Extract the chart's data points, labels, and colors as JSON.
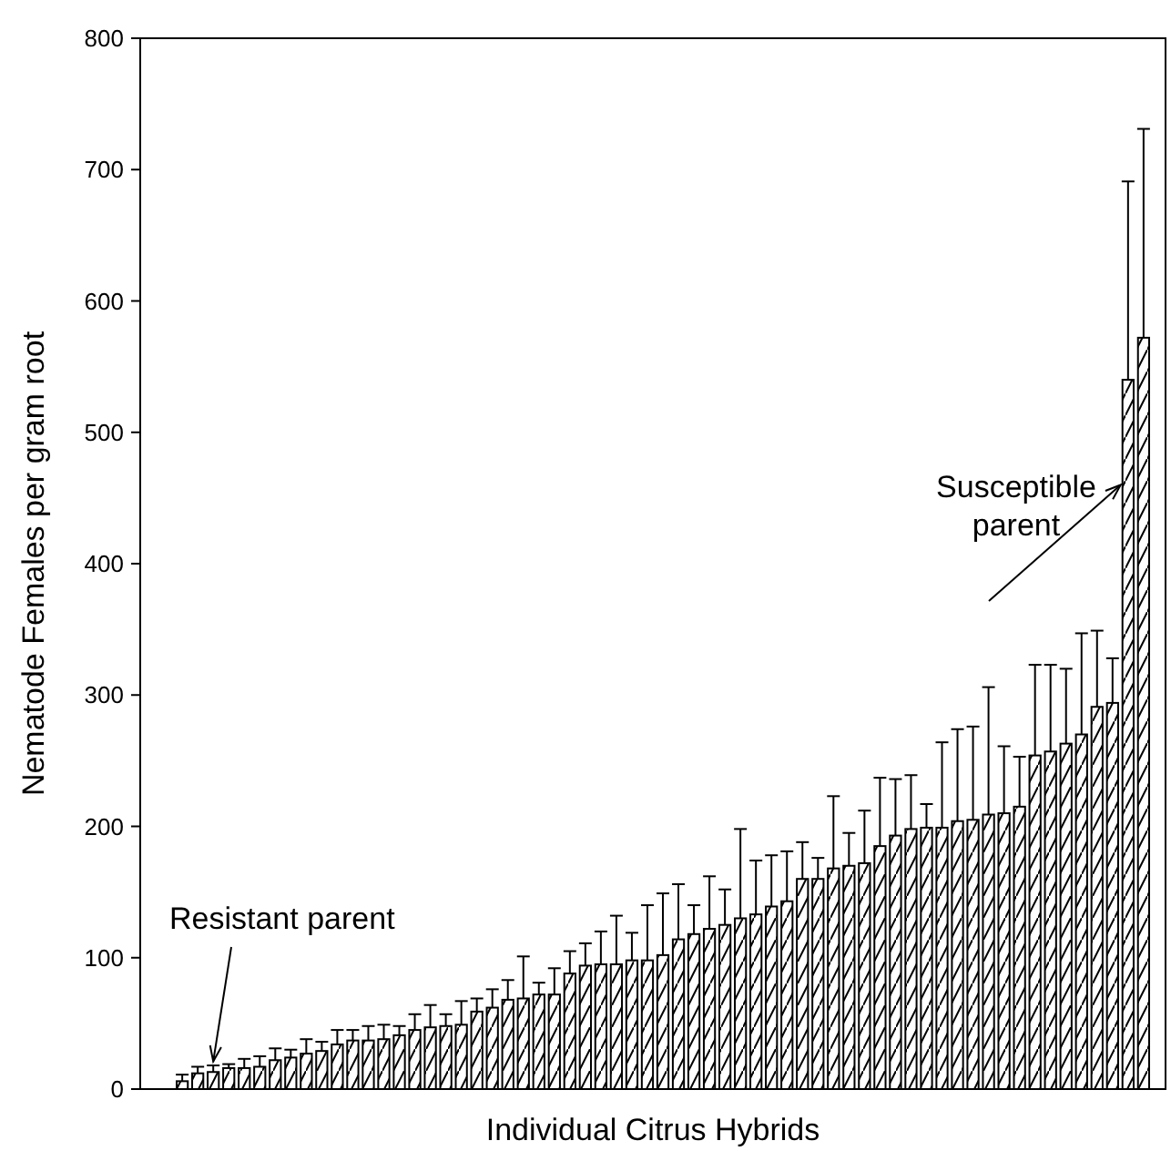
{
  "chart_data": {
    "type": "bar",
    "xlabel": "Individual Citrus Hybrids",
    "ylabel": "Nematode Females per gram root",
    "categories": [
      null,
      null,
      null,
      null,
      null,
      null,
      null,
      null,
      null,
      null,
      null,
      null,
      null,
      null,
      null,
      null,
      null,
      null,
      null,
      null,
      null,
      null,
      null,
      null,
      null,
      null,
      null,
      null,
      null,
      null,
      null,
      null,
      null,
      null,
      null,
      null,
      null,
      null,
      null,
      null,
      null,
      null,
      null,
      null,
      null,
      null,
      null,
      null,
      null,
      null,
      null,
      null,
      null,
      null,
      null,
      null,
      null,
      null,
      null,
      null,
      null,
      null,
      null
    ],
    "values": [
      6,
      12,
      13,
      16,
      16,
      17,
      22,
      24,
      27,
      29,
      34,
      37,
      37,
      38,
      41,
      45,
      47,
      48,
      49,
      59,
      62,
      68,
      69,
      72,
      72,
      88,
      94,
      95,
      95,
      98,
      98,
      102,
      114,
      118,
      122,
      125,
      130,
      133,
      139,
      143,
      160,
      160,
      168,
      170,
      172,
      185,
      193,
      198,
      199,
      199,
      204,
      205,
      209,
      210,
      215,
      254,
      257,
      263,
      270,
      291,
      294,
      540,
      572
    ],
    "errors": [
      [
        6,
        11
      ],
      [
        12,
        17
      ],
      [
        13,
        18
      ],
      [
        16,
        19
      ],
      [
        16,
        23
      ],
      [
        17,
        25
      ],
      [
        22,
        31
      ],
      [
        24,
        30
      ],
      [
        27,
        38
      ],
      [
        29,
        36
      ],
      [
        34,
        45
      ],
      [
        37,
        45
      ],
      [
        37,
        48
      ],
      [
        38,
        49
      ],
      [
        41,
        48
      ],
      [
        45,
        57
      ],
      [
        47,
        64
      ],
      [
        48,
        57
      ],
      [
        49,
        67
      ],
      [
        59,
        69
      ],
      [
        62,
        76
      ],
      [
        68,
        83
      ],
      [
        69,
        101
      ],
      [
        72,
        81
      ],
      [
        72,
        92
      ],
      [
        88,
        105
      ],
      [
        94,
        111
      ],
      [
        95,
        120
      ],
      [
        95,
        132
      ],
      [
        98,
        119
      ],
      [
        98,
        140
      ],
      [
        102,
        149
      ],
      [
        114,
        156
      ],
      [
        118,
        140
      ],
      [
        122,
        162
      ],
      [
        125,
        152
      ],
      [
        130,
        198
      ],
      [
        133,
        174
      ],
      [
        139,
        178
      ],
      [
        143,
        181
      ],
      [
        160,
        188
      ],
      [
        160,
        176
      ],
      [
        168,
        223
      ],
      [
        170,
        195
      ],
      [
        172,
        212
      ],
      [
        185,
        237
      ],
      [
        193,
        236
      ],
      [
        198,
        239
      ],
      [
        199,
        217
      ],
      [
        199,
        264
      ],
      [
        204,
        274
      ],
      [
        205,
        276
      ],
      [
        209,
        306
      ],
      [
        210,
        261
      ],
      [
        215,
        253
      ],
      [
        254,
        323
      ],
      [
        257,
        323
      ],
      [
        263,
        320
      ],
      [
        270,
        347
      ],
      [
        291,
        349
      ],
      [
        294,
        328
      ],
      [
        540,
        691
      ],
      [
        572,
        731
      ]
    ],
    "color": "#000000",
    "ylim": [
      0,
      800
    ],
    "yticks": [
      0,
      100,
      200,
      300,
      400,
      500,
      600,
      700,
      800
    ],
    "annotations": [
      "Resistant parent",
      "Susceptible parent"
    ]
  }
}
